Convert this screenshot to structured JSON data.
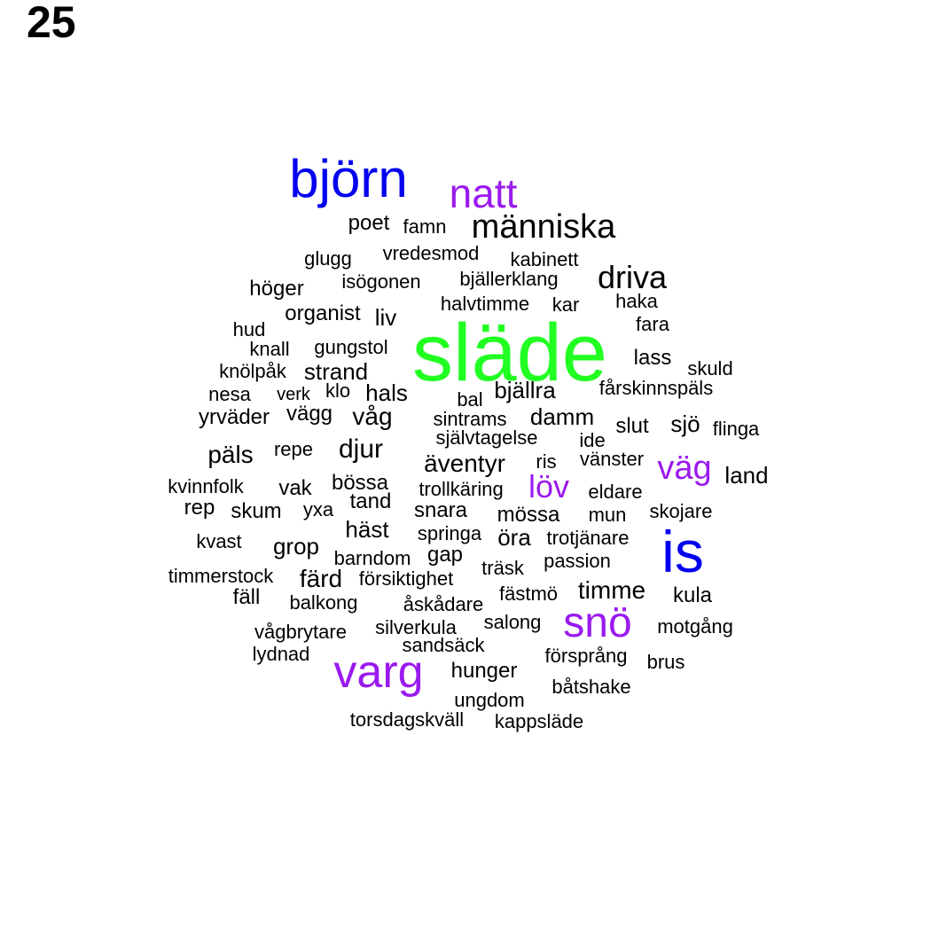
{
  "page_number": "25",
  "colors": {
    "black": "#000000",
    "blue": "#0000ee",
    "purple": "#9a1aee",
    "green": "#22ff22"
  },
  "cloud": {
    "words": [
      {
        "text": "släde",
        "color": "green"
      },
      {
        "text": "björn",
        "color": "blue"
      },
      {
        "text": "is",
        "color": "blue"
      },
      {
        "text": "natt",
        "color": "purple"
      },
      {
        "text": "varg",
        "color": "purple"
      },
      {
        "text": "snö",
        "color": "purple"
      },
      {
        "text": "väg",
        "color": "purple"
      },
      {
        "text": "löv",
        "color": "purple"
      },
      {
        "text": "människa",
        "color": "black"
      },
      {
        "text": "driva",
        "color": "black"
      },
      {
        "text": "poet",
        "color": "black"
      },
      {
        "text": "famn",
        "color": "black"
      },
      {
        "text": "glugg",
        "color": "black"
      },
      {
        "text": "vredesmod",
        "color": "black"
      },
      {
        "text": "kabinett",
        "color": "black"
      },
      {
        "text": "höger",
        "color": "black"
      },
      {
        "text": "isögonen",
        "color": "black"
      },
      {
        "text": "bjällerklang",
        "color": "black"
      },
      {
        "text": "halvtimme",
        "color": "black"
      },
      {
        "text": "kar",
        "color": "black"
      },
      {
        "text": "haka",
        "color": "black"
      },
      {
        "text": "organist",
        "color": "black"
      },
      {
        "text": "liv",
        "color": "black"
      },
      {
        "text": "fara",
        "color": "black"
      },
      {
        "text": "hud",
        "color": "black"
      },
      {
        "text": "knall",
        "color": "black"
      },
      {
        "text": "gungstol",
        "color": "black"
      },
      {
        "text": "lass",
        "color": "black"
      },
      {
        "text": "skuld",
        "color": "black"
      },
      {
        "text": "knölpåk",
        "color": "black"
      },
      {
        "text": "strand",
        "color": "black"
      },
      {
        "text": "fårskinnspäls",
        "color": "black"
      },
      {
        "text": "nesa",
        "color": "black"
      },
      {
        "text": "verk",
        "color": "black"
      },
      {
        "text": "klo",
        "color": "black"
      },
      {
        "text": "hals",
        "color": "black"
      },
      {
        "text": "bal",
        "color": "black"
      },
      {
        "text": "bjällra",
        "color": "black"
      },
      {
        "text": "yrväder",
        "color": "black"
      },
      {
        "text": "vägg",
        "color": "black"
      },
      {
        "text": "våg",
        "color": "black"
      },
      {
        "text": "sintrams",
        "color": "black"
      },
      {
        "text": "damm",
        "color": "black"
      },
      {
        "text": "slut",
        "color": "black"
      },
      {
        "text": "sjö",
        "color": "black"
      },
      {
        "text": "flinga",
        "color": "black"
      },
      {
        "text": "självtagelse",
        "color": "black"
      },
      {
        "text": "ide",
        "color": "black"
      },
      {
        "text": "päls",
        "color": "black"
      },
      {
        "text": "repe",
        "color": "black"
      },
      {
        "text": "djur",
        "color": "black"
      },
      {
        "text": "äventyr",
        "color": "black"
      },
      {
        "text": "ris",
        "color": "black"
      },
      {
        "text": "vänster",
        "color": "black"
      },
      {
        "text": "land",
        "color": "black"
      },
      {
        "text": "kvinnfolk",
        "color": "black"
      },
      {
        "text": "vak",
        "color": "black"
      },
      {
        "text": "bössa",
        "color": "black"
      },
      {
        "text": "trollkäring",
        "color": "black"
      },
      {
        "text": "eldare",
        "color": "black"
      },
      {
        "text": "rep",
        "color": "black"
      },
      {
        "text": "skum",
        "color": "black"
      },
      {
        "text": "yxa",
        "color": "black"
      },
      {
        "text": "tand",
        "color": "black"
      },
      {
        "text": "snara",
        "color": "black"
      },
      {
        "text": "mössa",
        "color": "black"
      },
      {
        "text": "mun",
        "color": "black"
      },
      {
        "text": "skojare",
        "color": "black"
      },
      {
        "text": "häst",
        "color": "black"
      },
      {
        "text": "kvast",
        "color": "black"
      },
      {
        "text": "springa",
        "color": "black"
      },
      {
        "text": "öra",
        "color": "black"
      },
      {
        "text": "trotjänare",
        "color": "black"
      },
      {
        "text": "grop",
        "color": "black"
      },
      {
        "text": "gap",
        "color": "black"
      },
      {
        "text": "barndom",
        "color": "black"
      },
      {
        "text": "passion",
        "color": "black"
      },
      {
        "text": "träsk",
        "color": "black"
      },
      {
        "text": "timmerstock",
        "color": "black"
      },
      {
        "text": "färd",
        "color": "black"
      },
      {
        "text": "försiktighet",
        "color": "black"
      },
      {
        "text": "timme",
        "color": "black"
      },
      {
        "text": "fäll",
        "color": "black"
      },
      {
        "text": "fästmö",
        "color": "black"
      },
      {
        "text": "kula",
        "color": "black"
      },
      {
        "text": "balkong",
        "color": "black"
      },
      {
        "text": "åskådare",
        "color": "black"
      },
      {
        "text": "salong",
        "color": "black"
      },
      {
        "text": "motgång",
        "color": "black"
      },
      {
        "text": "vågbrytare",
        "color": "black"
      },
      {
        "text": "silverkula",
        "color": "black"
      },
      {
        "text": "sandsäck",
        "color": "black"
      },
      {
        "text": "lydnad",
        "color": "black"
      },
      {
        "text": "försprång",
        "color": "black"
      },
      {
        "text": "brus",
        "color": "black"
      },
      {
        "text": "hunger",
        "color": "black"
      },
      {
        "text": "båtshake",
        "color": "black"
      },
      {
        "text": "ungdom",
        "color": "black"
      },
      {
        "text": "torsdagskväll",
        "color": "black"
      },
      {
        "text": "kappsläde",
        "color": "black"
      }
    ]
  }
}
